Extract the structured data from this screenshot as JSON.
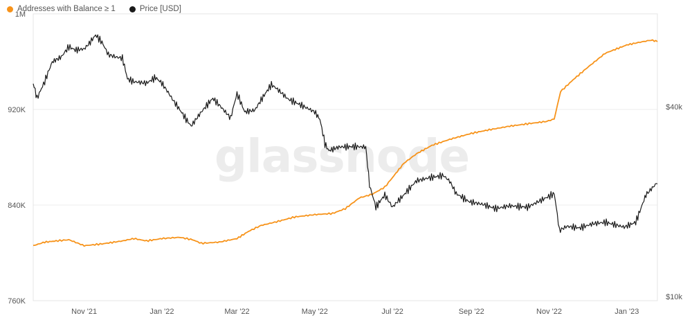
{
  "chart_data": {
    "type": "line",
    "watermark": "glassnode",
    "x_ticks": [
      "Nov '21",
      "Jan '22",
      "Mar '22",
      "May '22",
      "Jul '22",
      "Sep '22",
      "Nov '22",
      "Jan '23"
    ],
    "y_left": {
      "ticks": [
        "760K",
        "840K",
        "920K",
        "1M"
      ],
      "ylim": [
        760000,
        1000000
      ]
    },
    "y_right": {
      "ticks": [
        "$10k",
        "$40k"
      ],
      "scale": "log"
    },
    "series": [
      {
        "name": "Addresses with Balance ≥ 1",
        "color": "#f7931a",
        "axis": "left",
        "x": [
          "2021-09-22",
          "2021-10-01",
          "2021-10-10",
          "2021-10-20",
          "2021-11-01",
          "2021-11-15",
          "2021-12-01",
          "2021-12-10",
          "2021-12-20",
          "2022-01-01",
          "2022-01-15",
          "2022-01-25",
          "2022-02-01",
          "2022-02-15",
          "2022-03-01",
          "2022-03-10",
          "2022-03-20",
          "2022-04-01",
          "2022-04-15",
          "2022-05-01",
          "2022-05-15",
          "2022-05-25",
          "2022-06-05",
          "2022-06-15",
          "2022-06-25",
          "2022-07-01",
          "2022-07-10",
          "2022-07-20",
          "2022-08-01",
          "2022-08-15",
          "2022-09-01",
          "2022-09-15",
          "2022-10-01",
          "2022-10-15",
          "2022-10-30",
          "2022-11-05",
          "2022-11-10",
          "2022-11-20",
          "2022-12-01",
          "2022-12-15",
          "2023-01-01",
          "2023-01-10",
          "2023-01-20",
          "2023-01-25"
        ],
        "values": [
          806000,
          809000,
          810000,
          811000,
          806000,
          807500,
          810000,
          812000,
          810000,
          812000,
          813000,
          811000,
          808000,
          809000,
          812000,
          818000,
          823000,
          826000,
          830000,
          832000,
          833000,
          837000,
          846000,
          849000,
          855000,
          863000,
          875000,
          883000,
          890000,
          895000,
          900000,
          903000,
          906000,
          908000,
          910000,
          912000,
          935000,
          945000,
          955000,
          967000,
          974000,
          976000,
          978000,
          977000
        ]
      },
      {
        "name": "Price [USD]",
        "color": "#1a1a1a",
        "axis": "right",
        "x": [
          "2021-09-22",
          "2021-09-25",
          "2021-10-01",
          "2021-10-07",
          "2021-10-14",
          "2021-10-20",
          "2021-10-25",
          "2021-11-01",
          "2021-11-05",
          "2021-11-10",
          "2021-11-15",
          "2021-11-20",
          "2021-11-26",
          "2021-12-01",
          "2021-12-05",
          "2021-12-10",
          "2021-12-20",
          "2021-12-27",
          "2022-01-01",
          "2022-01-10",
          "2022-01-20",
          "2022-01-24",
          "2022-02-01",
          "2022-02-10",
          "2022-02-15",
          "2022-02-24",
          "2022-03-01",
          "2022-03-07",
          "2022-03-15",
          "2022-03-28",
          "2022-04-01",
          "2022-04-10",
          "2022-04-20",
          "2022-05-01",
          "2022-05-05",
          "2022-05-09",
          "2022-05-12",
          "2022-05-20",
          "2022-06-01",
          "2022-06-10",
          "2022-06-13",
          "2022-06-18",
          "2022-06-25",
          "2022-07-01",
          "2022-07-10",
          "2022-07-20",
          "2022-07-30",
          "2022-08-10",
          "2022-08-15",
          "2022-08-20",
          "2022-08-30",
          "2022-09-10",
          "2022-09-20",
          "2022-10-01",
          "2022-10-15",
          "2022-10-30",
          "2022-11-05",
          "2022-11-09",
          "2022-11-15",
          "2022-11-25",
          "2022-12-05",
          "2022-12-15",
          "2022-12-30",
          "2023-01-08",
          "2023-01-12",
          "2023-01-16",
          "2023-01-25"
        ],
        "values": [
          47500,
          42500,
          48000,
          55500,
          57500,
          62000,
          60500,
          61000,
          63500,
          67500,
          64000,
          58500,
          57500,
          57000,
          49000,
          48000,
          47500,
          49500,
          47500,
          41800,
          36500,
          34700,
          38500,
          42500,
          40500,
          36800,
          44000,
          38500,
          39000,
          47000,
          45700,
          42300,
          40500,
          38500,
          36500,
          30500,
          29000,
          29800,
          29900,
          29800,
          22500,
          19200,
          21000,
          19200,
          21000,
          23300,
          23800,
          24200,
          23200,
          21200,
          20000,
          19600,
          19000,
          19400,
          19200,
          20600,
          21200,
          16200,
          16700,
          16500,
          17000,
          17200,
          16600,
          17200,
          19000,
          21000,
          23000
        ]
      }
    ]
  }
}
